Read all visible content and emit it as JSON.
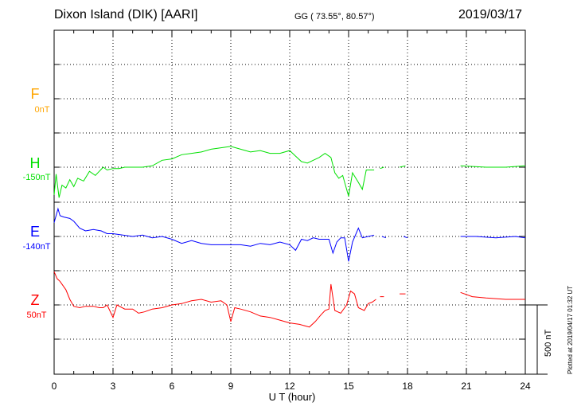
{
  "header": {
    "station": "Dixon Island (DIK)  [AARI]",
    "coords": "GG ( 73.55°,  80.57°)",
    "date": "2019/03/17"
  },
  "footer": {
    "plotted": "Plotted at 2019/04/17 01:32 UT",
    "scale_label": "500 nT"
  },
  "colors": {
    "F": "#ffa500",
    "H": "#00e000",
    "E": "#0000ff",
    "Z": "#ff0000",
    "grid": "#000000"
  },
  "chart_data": {
    "type": "line",
    "title": "",
    "xlabel": "U T (hour)",
    "ylabel": "",
    "xlim": [
      0,
      24
    ],
    "x_ticks": [
      "0",
      "3",
      "6",
      "9",
      "12",
      "15",
      "18",
      "21",
      "24"
    ],
    "grid": true,
    "scale_bar_nT": 500,
    "channels": [
      {
        "name": "F",
        "baseline": "0nT",
        "values": []
      },
      {
        "name": "H",
        "baseline": "-150nT",
        "values": [
          [
            0.0,
            -200
          ],
          [
            0.1,
            -50
          ],
          [
            0.25,
            -220
          ],
          [
            0.4,
            -130
          ],
          [
            0.6,
            -150
          ],
          [
            0.8,
            -90
          ],
          [
            1.0,
            -140
          ],
          [
            1.2,
            -80
          ],
          [
            1.5,
            -100
          ],
          [
            1.8,
            -30
          ],
          [
            2.1,
            -60
          ],
          [
            2.3,
            -30
          ],
          [
            2.5,
            0
          ],
          [
            2.7,
            -20
          ],
          [
            3.0,
            -10
          ],
          [
            3.3,
            -10
          ],
          [
            3.6,
            0
          ],
          [
            4.0,
            0
          ],
          [
            4.5,
            0
          ],
          [
            5.0,
            10
          ],
          [
            5.5,
            50
          ],
          [
            6.0,
            60
          ],
          [
            6.5,
            90
          ],
          [
            7.0,
            100
          ],
          [
            7.5,
            110
          ],
          [
            8.0,
            130
          ],
          [
            8.5,
            140
          ],
          [
            9.0,
            150
          ],
          [
            9.5,
            130
          ],
          [
            10.0,
            110
          ],
          [
            10.5,
            120
          ],
          [
            11.0,
            100
          ],
          [
            11.5,
            100
          ],
          [
            12.0,
            120
          ],
          [
            12.3,
            80
          ],
          [
            12.6,
            40
          ],
          [
            12.9,
            30
          ],
          [
            13.2,
            50
          ],
          [
            13.5,
            70
          ],
          [
            13.8,
            100
          ],
          [
            14.1,
            70
          ],
          [
            14.3,
            -40
          ],
          [
            14.5,
            -80
          ],
          [
            14.7,
            -60
          ],
          [
            15.0,
            -210
          ],
          [
            15.2,
            -40
          ],
          [
            15.5,
            -110
          ],
          [
            15.7,
            -160
          ],
          [
            15.9,
            -20
          ],
          [
            16.1,
            -20
          ],
          [
            16.3,
            -20
          ],
          null,
          [
            16.6,
            -10
          ],
          [
            16.8,
            0
          ],
          null,
          [
            17.6,
            0
          ],
          [
            17.9,
            10
          ],
          null,
          [
            20.7,
            10
          ],
          [
            22.0,
            0
          ],
          [
            23.0,
            0
          ],
          [
            24.0,
            10
          ]
        ]
      },
      {
        "name": "E",
        "baseline": "-140nT",
        "values": [
          [
            0.0,
            100
          ],
          [
            0.2,
            200
          ],
          [
            0.3,
            150
          ],
          [
            0.5,
            140
          ],
          [
            0.8,
            130
          ],
          [
            1.0,
            110
          ],
          [
            1.3,
            60
          ],
          [
            1.6,
            40
          ],
          [
            2.0,
            50
          ],
          [
            2.4,
            40
          ],
          [
            2.7,
            20
          ],
          [
            3.0,
            20
          ],
          [
            3.5,
            10
          ],
          [
            4.0,
            0
          ],
          [
            4.5,
            10
          ],
          [
            5.0,
            -10
          ],
          [
            5.5,
            0
          ],
          [
            6.0,
            -20
          ],
          [
            6.5,
            -50
          ],
          [
            7.0,
            -30
          ],
          [
            7.5,
            -50
          ],
          [
            8.0,
            -60
          ],
          [
            8.5,
            -60
          ],
          [
            9.0,
            -60
          ],
          [
            9.5,
            -60
          ],
          [
            10.0,
            -70
          ],
          [
            10.5,
            -50
          ],
          [
            11.0,
            -60
          ],
          [
            11.5,
            -40
          ],
          [
            12.0,
            -60
          ],
          [
            12.3,
            -100
          ],
          [
            12.6,
            -20
          ],
          [
            12.9,
            -30
          ],
          [
            13.2,
            -10
          ],
          [
            13.5,
            -20
          ],
          [
            13.8,
            -20
          ],
          [
            14.0,
            -20
          ],
          [
            14.2,
            -120
          ],
          [
            14.4,
            -40
          ],
          [
            14.6,
            -10
          ],
          [
            14.8,
            -10
          ],
          [
            15.0,
            -180
          ],
          [
            15.2,
            -40
          ],
          [
            15.5,
            60
          ],
          [
            15.7,
            -10
          ],
          [
            16.0,
            0
          ],
          [
            16.3,
            10
          ],
          null,
          [
            16.7,
            0
          ],
          [
            16.9,
            -10
          ],
          null,
          [
            17.8,
            0
          ],
          [
            18.0,
            -10
          ],
          null,
          [
            20.7,
            0
          ],
          [
            21.5,
            0
          ],
          [
            22.5,
            -10
          ],
          [
            23.5,
            0
          ],
          [
            24.0,
            -10
          ]
        ]
      },
      {
        "name": "Z",
        "baseline": "50nT",
        "values": [
          [
            0.0,
            240
          ],
          [
            0.15,
            190
          ],
          [
            0.3,
            170
          ],
          [
            0.6,
            110
          ],
          [
            0.8,
            40
          ],
          [
            1.0,
            -10
          ],
          [
            1.3,
            -20
          ],
          [
            1.6,
            -10
          ],
          [
            2.0,
            -10
          ],
          [
            2.3,
            -20
          ],
          [
            2.5,
            -20
          ],
          [
            2.7,
            0
          ],
          [
            3.0,
            -90
          ],
          [
            3.2,
            0
          ],
          [
            3.6,
            -30
          ],
          [
            4.0,
            -30
          ],
          [
            4.3,
            -60
          ],
          [
            4.6,
            -50
          ],
          [
            5.0,
            -30
          ],
          [
            5.5,
            -20
          ],
          [
            6.0,
            0
          ],
          [
            6.5,
            10
          ],
          [
            7.0,
            30
          ],
          [
            7.5,
            40
          ],
          [
            8.0,
            20
          ],
          [
            8.5,
            30
          ],
          [
            8.8,
            0
          ],
          [
            9.0,
            -120
          ],
          [
            9.2,
            -20
          ],
          [
            9.5,
            -30
          ],
          [
            10.0,
            -50
          ],
          [
            10.5,
            -80
          ],
          [
            11.0,
            -90
          ],
          [
            11.5,
            -110
          ],
          [
            12.0,
            -130
          ],
          [
            12.5,
            -140
          ],
          [
            13.0,
            -160
          ],
          [
            13.3,
            -120
          ],
          [
            13.6,
            -70
          ],
          [
            13.8,
            -40
          ],
          [
            14.0,
            -30
          ],
          [
            14.1,
            150
          ],
          [
            14.3,
            -40
          ],
          [
            14.6,
            -60
          ],
          [
            14.9,
            0
          ],
          [
            15.1,
            100
          ],
          [
            15.3,
            80
          ],
          [
            15.5,
            -20
          ],
          [
            15.8,
            -40
          ],
          [
            16.0,
            10
          ],
          [
            16.2,
            20
          ],
          [
            16.4,
            40
          ],
          null,
          [
            16.6,
            60
          ],
          [
            16.8,
            60
          ],
          null,
          [
            17.6,
            80
          ],
          [
            17.9,
            80
          ],
          null,
          [
            20.7,
            90
          ],
          [
            21.3,
            60
          ],
          [
            22.0,
            50
          ],
          [
            23.0,
            40
          ],
          [
            24.0,
            40
          ]
        ]
      }
    ]
  }
}
